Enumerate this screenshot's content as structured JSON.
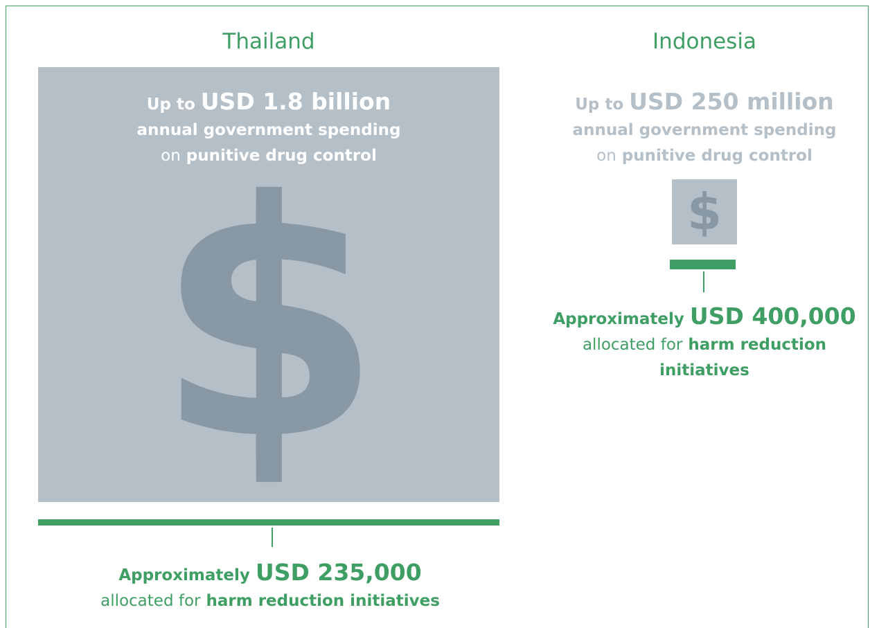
{
  "panels": [
    {
      "country": "Thailand",
      "spending": {
        "prefix": "Up to",
        "amount": "USD 1.8 billion",
        "line2": "annual government spending",
        "line3_prefix": "on",
        "line3_bold": "punitive drug control"
      },
      "symbol": "$",
      "harm": {
        "prefix": "Approximately",
        "amount": "USD 235,000",
        "line2_prefix": "allocated for",
        "line2_bold": "harm reduction initiatives"
      }
    },
    {
      "country": "Indonesia",
      "spending": {
        "prefix": "Up to",
        "amount": "USD 250 million",
        "line2": "annual government spending",
        "line3_prefix": "on",
        "line3_bold": "punitive drug control"
      },
      "symbol": "$",
      "harm": {
        "prefix": "Approximately",
        "amount": "USD 400,000",
        "line2_prefix": "allocated for",
        "line2_bold": "harm reduction initiatives"
      }
    }
  ]
}
